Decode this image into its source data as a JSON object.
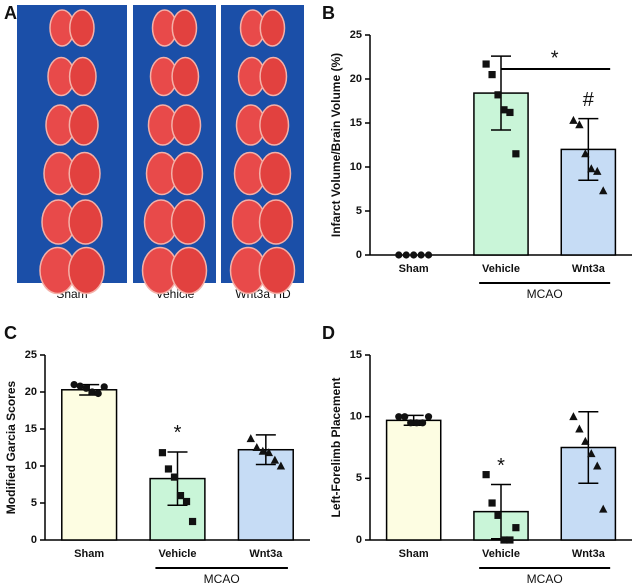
{
  "photo": {
    "panel": "A",
    "columns": [
      "Sham",
      "Vehicle",
      "Wnt3a HD"
    ]
  },
  "chart_data": [
    {
      "type": "bar",
      "panel": "B",
      "y_label": "Infarct Volume/Brain Volume (%)",
      "categories": [
        "Sham",
        "Vehicle",
        "Wnt3a"
      ],
      "colors": [
        "#fdfde2",
        "#c9f5d8",
        "#c6dcf5"
      ],
      "markers": [
        "circle",
        "square",
        "triangle"
      ],
      "values": [
        0,
        18.4,
        12
      ],
      "errors": [
        0,
        4.2,
        3.5
      ],
      "points": [
        [
          0,
          0,
          0,
          0,
          0
        ],
        [
          21.7,
          20.5,
          18.2,
          16.5,
          16.2,
          11.5
        ],
        [
          15.3,
          14.8,
          11.5,
          9.8,
          9.5,
          7.3
        ]
      ],
      "ylim": [
        0,
        25
      ],
      "yticks": [
        0,
        5,
        10,
        15,
        20,
        25
      ],
      "group_label": "MCAO",
      "bracket_label": "*",
      "marks": [
        null,
        null,
        "#"
      ]
    },
    {
      "type": "bar",
      "panel": "C",
      "y_label": "Modified Garcia Scores",
      "categories": [
        "Sham",
        "Vehicle",
        "Wnt3a"
      ],
      "colors": [
        "#fdfde2",
        "#c9f5d8",
        "#c6dcf5"
      ],
      "markers": [
        "circle",
        "square",
        "triangle"
      ],
      "values": [
        20.3,
        8.3,
        12.2
      ],
      "errors": [
        0.7,
        3.6,
        2
      ],
      "points": [
        [
          21,
          20.8,
          20.5,
          20,
          19.8,
          20.7
        ],
        [
          11.8,
          9.6,
          8.5,
          6,
          5.2,
          2.5
        ],
        [
          13.7,
          12.5,
          12,
          11.8,
          10.8,
          10
        ]
      ],
      "ylim": [
        0,
        25
      ],
      "yticks": [
        0,
        5,
        10,
        15,
        20,
        25
      ],
      "group_label": "MCAO",
      "marks": [
        null,
        "*",
        null
      ]
    },
    {
      "type": "bar",
      "panel": "D",
      "y_label": "Left-Forelimb Placement",
      "categories": [
        "Sham",
        "Vehicle",
        "Wnt3a"
      ],
      "colors": [
        "#fdfde2",
        "#c9f5d8",
        "#c6dcf5"
      ],
      "markers": [
        "circle",
        "square",
        "triangle"
      ],
      "values": [
        9.7,
        2.3,
        7.5
      ],
      "errors": [
        0.4,
        2.2,
        2.9
      ],
      "points": [
        [
          10,
          10,
          9.5,
          9.5,
          9.5,
          10
        ],
        [
          5.3,
          3,
          2,
          0,
          0,
          1
        ],
        [
          10,
          9,
          8,
          7,
          6,
          2.5
        ]
      ],
      "ylim": [
        0,
        15
      ],
      "yticks": [
        0,
        5,
        10,
        15
      ],
      "group_label": "MCAO",
      "marks": [
        null,
        "*",
        null
      ]
    }
  ]
}
